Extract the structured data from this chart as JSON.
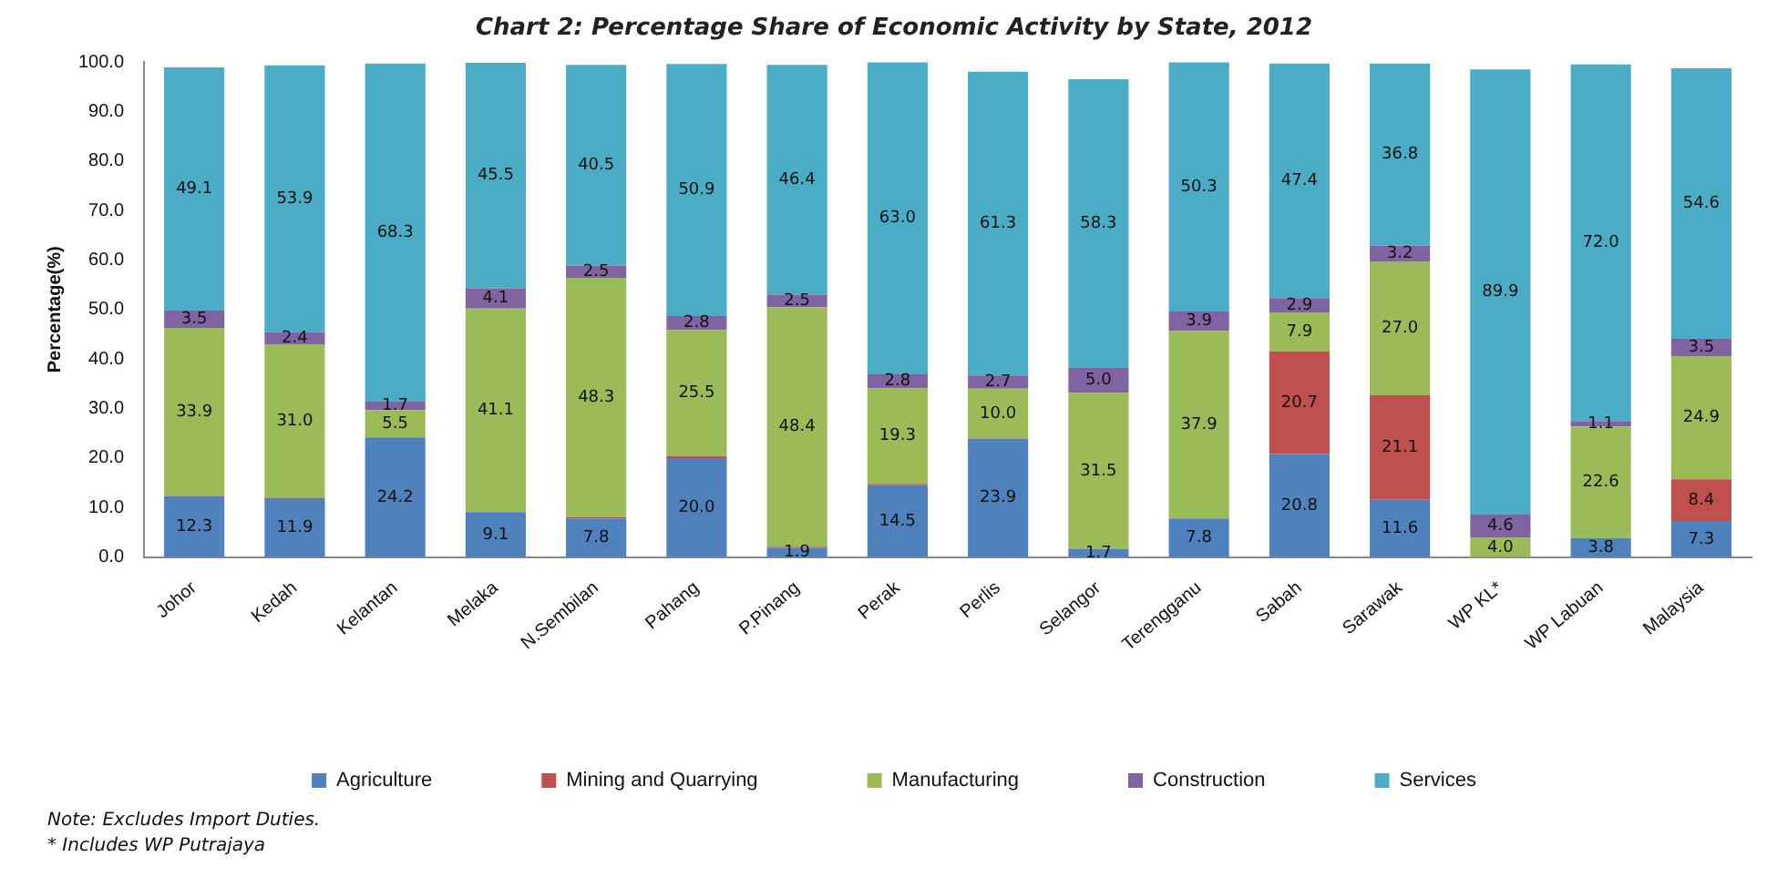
{
  "chart_data": {
    "type": "bar",
    "stacked": true,
    "title": "Chart 2: Percentage Share of Economic Activity by State, 2012",
    "ylabel": "Percentage(%)",
    "categories": [
      "Johor",
      "Kedah",
      "Kelantan",
      "Melaka",
      "N.Sembilan",
      "Pahang",
      "P.Pinang",
      "Perak",
      "Perlis",
      "Selangor",
      "Terengganu",
      "Sabah",
      "Sarawak",
      "WP KL*",
      "WP Labuan",
      "Malaysia"
    ],
    "series": [
      {
        "name": "Agriculture",
        "color": "#4f81bd",
        "values": [
          12.3,
          11.9,
          24.2,
          9.1,
          7.8,
          20.0,
          1.9,
          14.5,
          23.9,
          1.7,
          7.8,
          20.8,
          11.6,
          null,
          3.8,
          7.3
        ],
        "value_labels": [
          "12.3",
          "11.9",
          "24.2",
          "9.1",
          "7.8",
          "20.0",
          "1.9",
          "14.5",
          "23.9",
          "1.7",
          "7.8",
          "20.8",
          "11.6",
          null,
          "3.8",
          "7.3"
        ]
      },
      {
        "name": "Mining and Quarrying",
        "color": "#c0504d",
        "values": [
          0.1,
          0.1,
          null,
          null,
          0.3,
          0.4,
          0.2,
          0.3,
          0.1,
          null,
          null,
          20.7,
          21.1,
          null,
          null,
          8.4
        ],
        "value_labels": [
          null,
          null,
          null,
          null,
          null,
          null,
          null,
          null,
          null,
          null,
          null,
          "20.7",
          "21.1",
          null,
          null,
          "8.4"
        ]
      },
      {
        "name": "Manufacturing",
        "color": "#9bbb59",
        "values": [
          33.9,
          31.0,
          5.5,
          41.1,
          48.3,
          25.5,
          48.4,
          19.3,
          10.0,
          31.5,
          37.9,
          7.9,
          27.0,
          4.0,
          22.6,
          24.9
        ],
        "value_labels": [
          "33.9",
          "31.0",
          "5.5",
          "41.1",
          "48.3",
          "25.5",
          "48.4",
          "19.3",
          "10.0",
          "31.5",
          "37.9",
          "7.9",
          "27.0",
          "4.0",
          "22.6",
          "24.9"
        ]
      },
      {
        "name": "Construction",
        "color": "#8064a2",
        "values": [
          3.5,
          2.4,
          1.7,
          4.1,
          2.5,
          2.8,
          2.5,
          2.8,
          2.7,
          5.0,
          3.9,
          2.9,
          3.2,
          4.6,
          1.1,
          3.5
        ],
        "value_labels": [
          "3.5",
          "2.4",
          "1.7",
          "4.1",
          "2.5",
          "2.8",
          "2.5",
          "2.8",
          "2.7",
          "5.0",
          "3.9",
          "2.9",
          "3.2",
          "4.6",
          "1.1",
          "3.5"
        ]
      },
      {
        "name": "Services",
        "color": "#4bacc6",
        "values": [
          49.1,
          53.9,
          68.3,
          45.5,
          40.5,
          50.9,
          46.4,
          63.0,
          61.3,
          58.3,
          50.3,
          47.4,
          36.8,
          89.9,
          72.0,
          54.6
        ],
        "value_labels": [
          "49.1",
          "53.9",
          "68.3",
          "45.5",
          "40.5",
          "50.9",
          "46.4",
          "63.0",
          "61.3",
          "58.3",
          "50.3",
          "47.4",
          "36.8",
          "89.9",
          "72.0",
          "54.6"
        ]
      }
    ],
    "ylim": [
      0,
      100
    ],
    "yticks": [
      {
        "value": 0,
        "label": "0.0"
      },
      {
        "value": 10,
        "label": "10.0"
      },
      {
        "value": 20,
        "label": "20.0"
      },
      {
        "value": 30,
        "label": "30.0"
      },
      {
        "value": 40,
        "label": "40.0"
      },
      {
        "value": 50,
        "label": "50.0"
      },
      {
        "value": 60,
        "label": "60.0"
      },
      {
        "value": 70,
        "label": "70.0"
      },
      {
        "value": 80,
        "label": "80.0"
      },
      {
        "value": 90,
        "label": "90.0"
      },
      {
        "value": 100,
        "label": "100.0"
      }
    ],
    "grid": false,
    "legend": "bottom",
    "annotations": [
      "Note: Excludes Import Duties.",
      "* Includes WP Putrajaya"
    ]
  }
}
